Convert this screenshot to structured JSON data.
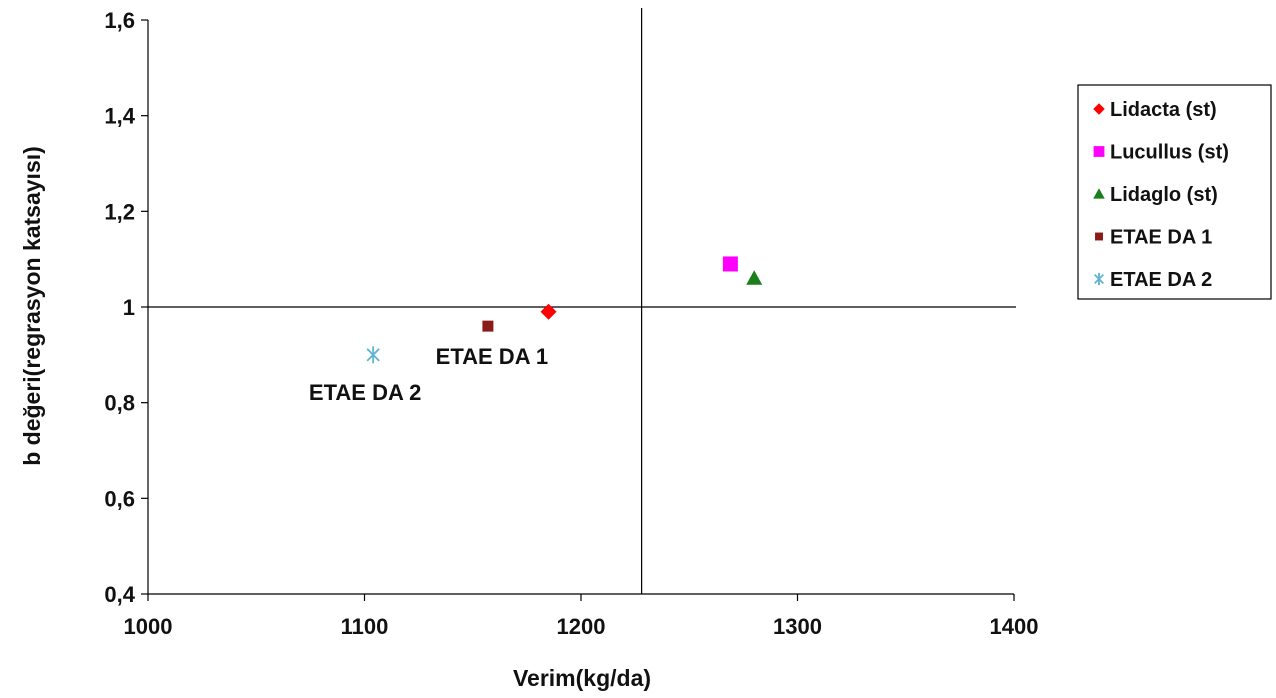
{
  "chart_data": {
    "type": "scatter",
    "title": "",
    "xlabel": "Verim(kg/da)",
    "ylabel": "b değeri(regrasyon katsayısı)",
    "xlim": [
      1000,
      1400
    ],
    "ylim": [
      0.4,
      1.6
    ],
    "x_ticks": [
      {
        "value": 1000,
        "label": "1000"
      },
      {
        "value": 1100,
        "label": "1100"
      },
      {
        "value": 1200,
        "label": "1200"
      },
      {
        "value": 1300,
        "label": "1300"
      },
      {
        "value": 1400,
        "label": "1400"
      }
    ],
    "y_ticks": [
      {
        "value": 0.4,
        "label": "0,4"
      },
      {
        "value": 0.6,
        "label": "0,6"
      },
      {
        "value": 0.8,
        "label": "0,8"
      },
      {
        "value": 1.0,
        "label": "1"
      },
      {
        "value": 1.2,
        "label": "1,2"
      },
      {
        "value": 1.4,
        "label": "1,4"
      },
      {
        "value": 1.6,
        "label": "1,6"
      }
    ],
    "grid": false,
    "legend_position": "right",
    "reference_lines": {
      "x": 1228,
      "y": 1.0
    },
    "series": [
      {
        "name": "Lidacta (st)",
        "marker": "diamond",
        "color": "#ff0000",
        "points": [
          {
            "x": 1185,
            "y": 0.99
          }
        ]
      },
      {
        "name": "Lucullus (st)",
        "marker": "square",
        "color": "#ff00ff",
        "points": [
          {
            "x": 1269,
            "y": 1.09
          }
        ]
      },
      {
        "name": "Lidaglo (st)",
        "marker": "triangle",
        "color": "#1a7f1a",
        "points": [
          {
            "x": 1280,
            "y": 1.06
          }
        ]
      },
      {
        "name": "ETAE DA 1",
        "marker": "small-square",
        "color": "#8b1a1a",
        "points": [
          {
            "x": 1157,
            "y": 0.96
          }
        ]
      },
      {
        "name": "ETAE DA 2",
        "marker": "asterisk",
        "color": "#5fb3d3",
        "points": [
          {
            "x": 1104,
            "y": 0.9
          }
        ]
      }
    ],
    "annotations": [
      {
        "text": "ETAE DA 1",
        "x": 1157,
        "y": 0.96
      },
      {
        "text": "ETAE DA 2",
        "x": 1104,
        "y": 0.9
      }
    ]
  }
}
